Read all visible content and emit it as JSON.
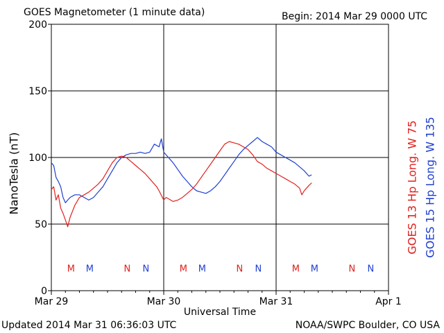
{
  "chart_data": {
    "type": "line",
    "title": "GOES Magnetometer (1 minute data)",
    "begin": "Begin:  2014 Mar 29 0000 UTC",
    "xlabel": "Universal Time",
    "ylabel": "NanoTesla (nT)",
    "ylim": [
      0,
      200
    ],
    "yticks": [
      0,
      50,
      100,
      150,
      200
    ],
    "xlim": [
      0,
      72
    ],
    "xticks": [
      {
        "x": 0,
        "label": "Mar 29"
      },
      {
        "x": 24,
        "label": "Mar 30"
      },
      {
        "x": 48,
        "label": "Mar 31"
      },
      {
        "x": 72,
        "label": "Apr 1"
      }
    ],
    "grid": true,
    "series": [
      {
        "name": "GOES 13 Hp  Long. W 75",
        "color": "#e0201c",
        "x": [
          0,
          0.5,
          1,
          1.5,
          2,
          2.5,
          3,
          3.5,
          4,
          5,
          6,
          7,
          8,
          9,
          10,
          11,
          12,
          13,
          14,
          15,
          16,
          17,
          18,
          19,
          20,
          20.5,
          21,
          22,
          22.5,
          23,
          24,
          24.5,
          25,
          26,
          27,
          28,
          29,
          30,
          31,
          32,
          33,
          34,
          35,
          36,
          37,
          38,
          39,
          40,
          41,
          42,
          43,
          44,
          45,
          46,
          47,
          48,
          49,
          50,
          51,
          52,
          53,
          53.5,
          54,
          55,
          55.6
        ],
        "y": [
          76,
          78,
          68,
          72,
          62,
          58,
          53,
          48,
          55,
          64,
          70,
          72,
          74,
          77,
          80,
          84,
          90,
          96,
          100,
          101,
          100,
          97,
          94,
          91,
          88,
          86,
          84,
          80,
          78,
          75,
          68,
          70,
          69,
          67,
          68,
          70,
          73,
          76,
          80,
          85,
          90,
          95,
          100,
          105,
          110,
          112,
          111,
          110,
          108,
          106,
          102,
          97,
          95,
          92,
          90,
          88,
          86,
          84,
          82,
          80,
          77,
          72,
          75,
          79,
          81
        ]
      },
      {
        "name": "GOES 15 Hp  Long. W 135",
        "color": "#1e3fd0",
        "x": [
          0,
          0.5,
          1,
          1.5,
          2,
          2.5,
          3,
          3.5,
          4,
          5,
          6,
          7,
          8,
          9,
          10,
          11,
          12,
          13,
          14,
          15,
          16,
          17,
          18,
          19,
          20,
          21,
          22,
          23,
          23.5,
          24,
          25,
          26,
          27,
          28,
          29,
          30,
          31,
          32,
          33,
          34,
          35,
          36,
          37,
          38,
          39,
          40,
          41,
          42,
          43,
          44,
          45,
          46,
          47,
          48,
          49,
          50,
          51,
          52,
          53,
          54,
          55,
          55.6
        ],
        "y": [
          96,
          94,
          85,
          82,
          78,
          70,
          66,
          68,
          70,
          72,
          72,
          70,
          68,
          70,
          74,
          78,
          84,
          90,
          96,
          100,
          102,
          103,
          103,
          104,
          103,
          104,
          110,
          108,
          114,
          104,
          100,
          96,
          91,
          86,
          82,
          78,
          75,
          74,
          73,
          75,
          78,
          82,
          87,
          92,
          97,
          102,
          106,
          109,
          112,
          115,
          112,
          110,
          108,
          104,
          102,
          100,
          98,
          96,
          93,
          90,
          86,
          87
        ]
      }
    ],
    "markers": [
      {
        "letter": "M",
        "sat": 0,
        "x": 4.2
      },
      {
        "letter": "M",
        "sat": 1,
        "x": 8.2
      },
      {
        "letter": "N",
        "sat": 0,
        "x": 16.2
      },
      {
        "letter": "N",
        "sat": 1,
        "x": 20.2
      },
      {
        "letter": "M",
        "sat": 0,
        "x": 28.2
      },
      {
        "letter": "M",
        "sat": 1,
        "x": 32.2
      },
      {
        "letter": "N",
        "sat": 0,
        "x": 40.2
      },
      {
        "letter": "N",
        "sat": 1,
        "x": 44.2
      },
      {
        "letter": "M",
        "sat": 0,
        "x": 52.2
      },
      {
        "letter": "M",
        "sat": 1,
        "x": 56.2
      },
      {
        "letter": "N",
        "sat": 0,
        "x": 64.2
      },
      {
        "letter": "N",
        "sat": 1,
        "x": 68.2
      }
    ],
    "marker_value": 17
  },
  "footer": {
    "updated": "Updated 2014 Mar 31 06:36:03 UTC",
    "credit": "NOAA/SWPC Boulder, CO USA"
  }
}
